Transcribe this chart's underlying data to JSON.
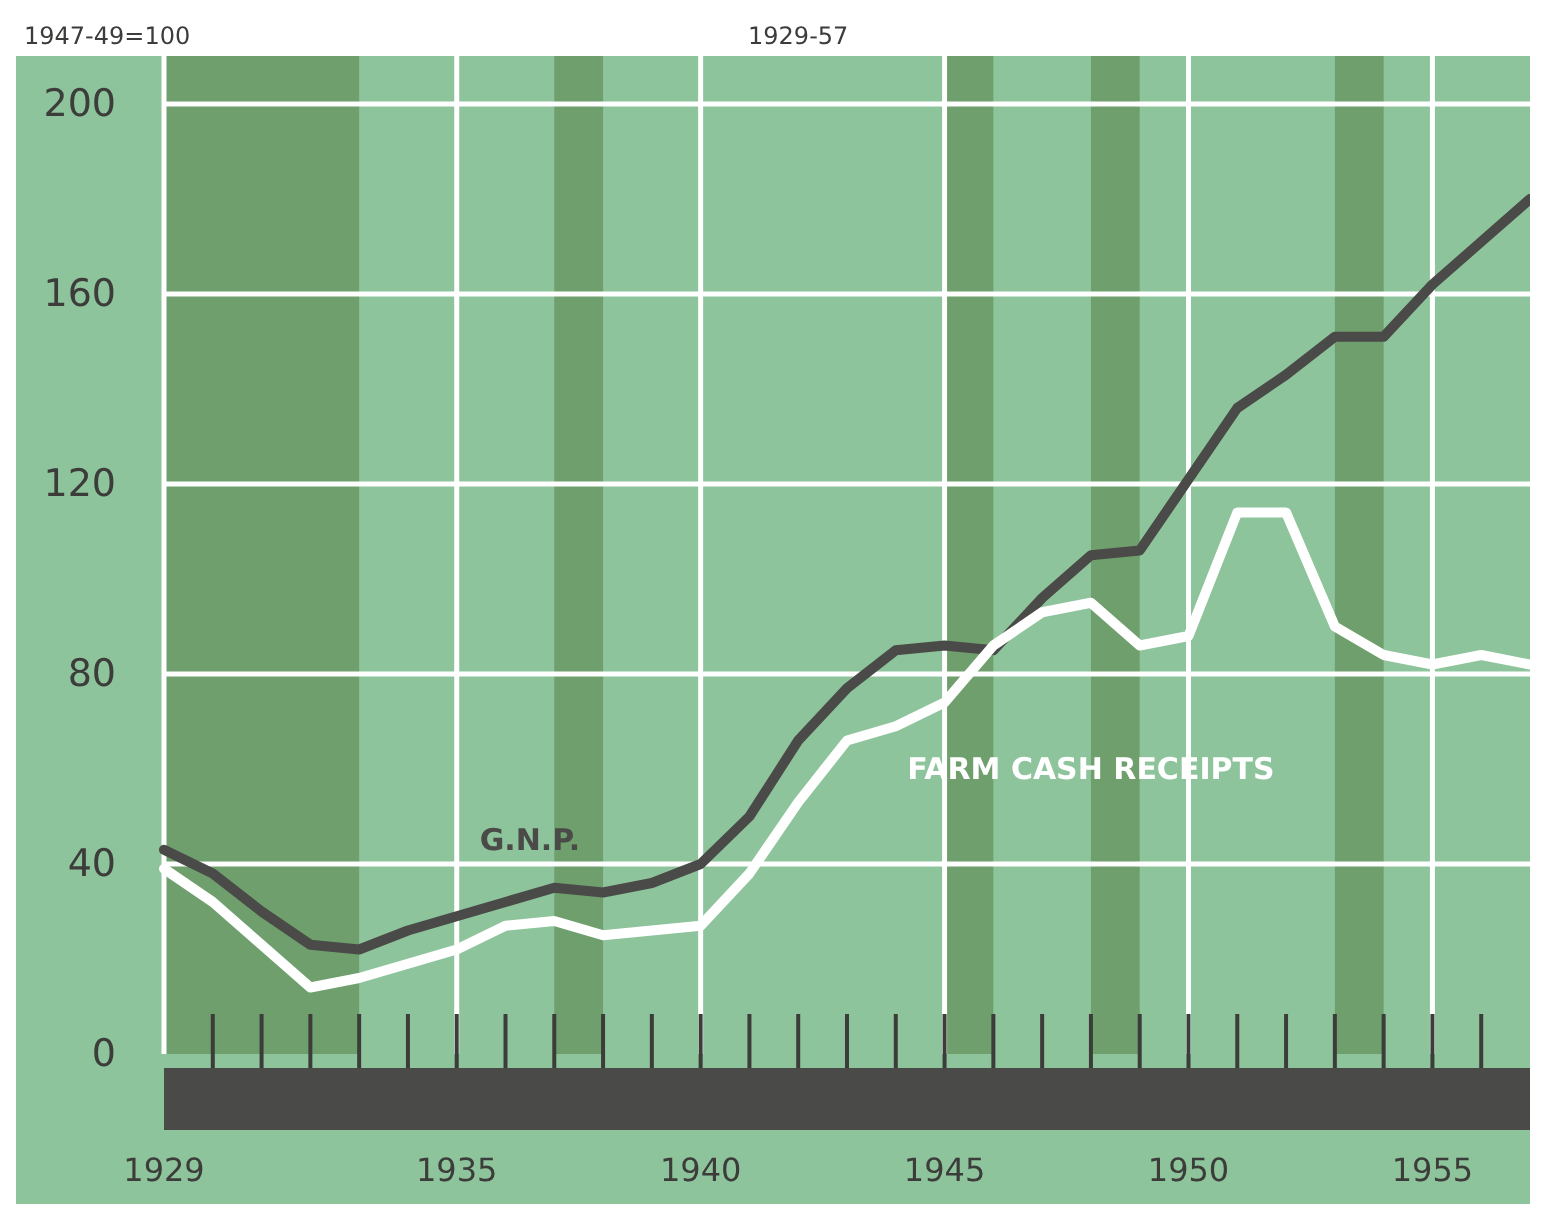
{
  "chart_data": {
    "type": "line",
    "subtitle": "1929-57",
    "ylabel": "1947-49=100",
    "x": [
      1929,
      1930,
      1931,
      1932,
      1933,
      1934,
      1935,
      1936,
      1937,
      1938,
      1939,
      1940,
      1941,
      1942,
      1943,
      1944,
      1945,
      1946,
      1947,
      1948,
      1949,
      1950,
      1951,
      1952,
      1953,
      1954,
      1955,
      1956,
      1957
    ],
    "series": [
      {
        "name": "G.N.P.",
        "color": "#4a4a48",
        "values": [
          43,
          38,
          30,
          23,
          22,
          26,
          29,
          32,
          35,
          34,
          36,
          40,
          50,
          66,
          77,
          85,
          86,
          85,
          96,
          105,
          106,
          121,
          136,
          143,
          151,
          151,
          162,
          171,
          180
        ]
      },
      {
        "name": "FARM CASH RECEIPTS",
        "color": "#ffffff",
        "values": [
          39,
          32,
          23,
          14,
          16,
          19,
          22,
          27,
          28,
          25,
          26,
          27,
          38,
          53,
          66,
          69,
          74,
          86,
          93,
          95,
          86,
          88,
          114,
          114,
          90,
          84,
          82,
          84,
          82
        ]
      }
    ],
    "xlim": [
      1929,
      1957
    ],
    "ylim": [
      0,
      200
    ],
    "xticks": [
      1929,
      1935,
      1940,
      1945,
      1950,
      1955
    ],
    "yticks": [
      0,
      40,
      80,
      120,
      160,
      200
    ],
    "bands": [
      {
        "axis": "x",
        "from": 1929,
        "to": 1933,
        "color": "#6f9f6c"
      },
      {
        "axis": "x",
        "from": 1937,
        "to": 1938,
        "color": "#6f9f6c"
      },
      {
        "axis": "x",
        "from": 1945,
        "to": 1946,
        "color": "#6f9f6c"
      },
      {
        "axis": "x",
        "from": 1948,
        "to": 1949,
        "color": "#6f9f6c"
      },
      {
        "axis": "x",
        "from": 1953,
        "to": 1954,
        "color": "#6f9f6c"
      }
    ],
    "grid": true,
    "marker": "none",
    "line_style": "solid"
  }
}
